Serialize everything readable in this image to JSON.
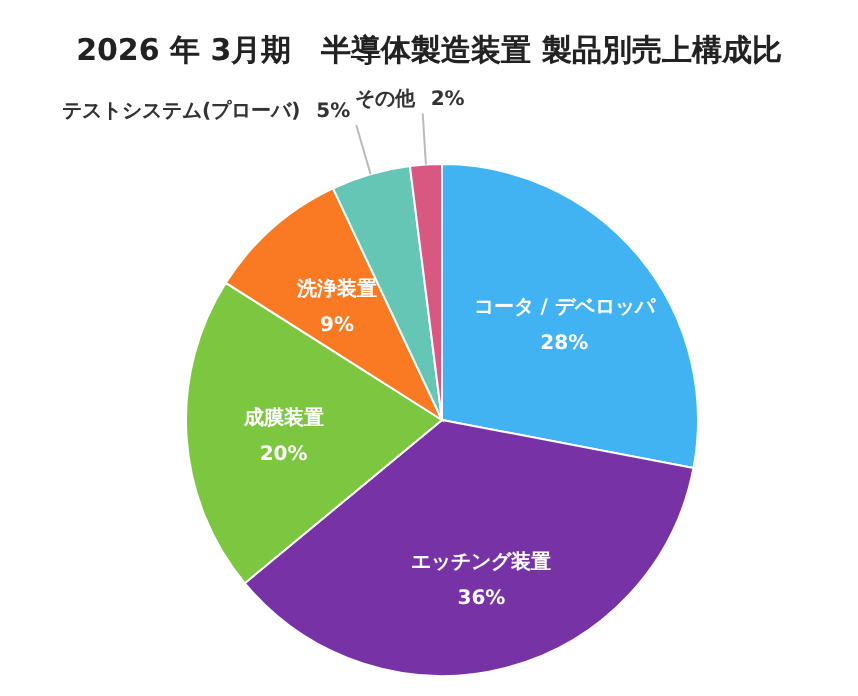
{
  "chart_data": {
    "type": "pie",
    "title": "2026 年 3月期　半導体製造装置 製品別売上構成比",
    "categories": [
      "コータ / デベロッパ",
      "エッチング装置",
      "成膜装置",
      "洗浄装置",
      "テストシステム(プローバ)",
      "その他"
    ],
    "values": [
      28,
      36,
      20,
      9,
      5,
      2
    ],
    "colors": [
      "#41b3f2",
      "#7733a6",
      "#7cc640",
      "#f97a22",
      "#66c6b6",
      "#d95882"
    ],
    "value_labels": [
      "28%",
      "36%",
      "20%",
      "9%",
      "5%",
      "2%"
    ]
  }
}
